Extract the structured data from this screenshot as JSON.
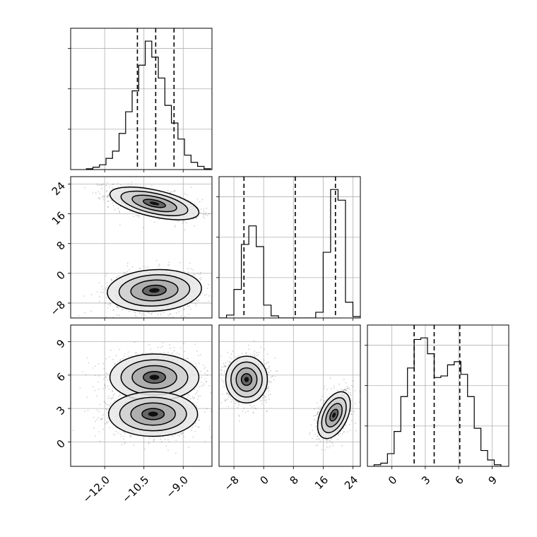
{
  "chart_data": {
    "type": "corner",
    "parameters": [
      {
        "index": 0,
        "range": [
          -13.3,
          -7.9
        ],
        "ticks": [
          -12.0,
          -10.5,
          -9.0
        ],
        "tick_labels": [
          "−12.0",
          "−10.5",
          "−9.0"
        ],
        "quantiles": [
          -10.75,
          -10.05,
          -9.35
        ]
      },
      {
        "index": 1,
        "range": [
          -12,
          26
        ],
        "ticks": [
          -8,
          0,
          8,
          16,
          24
        ],
        "tick_labels": [
          "−8",
          "0",
          "8",
          "16",
          "24"
        ],
        "quantiles": [
          -5.3,
          8.5,
          19.3
        ]
      },
      {
        "index": 2,
        "range": [
          -2.2,
          10.5
        ],
        "ticks": [
          0,
          3,
          6,
          9
        ],
        "tick_labels": [
          "0",
          "3",
          "6",
          "9"
        ],
        "quantiles": [
          2.0,
          3.8,
          6.1
        ]
      }
    ],
    "histograms": [
      {
        "param": 0,
        "edges": [
          -12.7,
          -12.45,
          -12.2,
          -11.95,
          -11.7,
          -11.45,
          -11.2,
          -10.95,
          -10.7,
          -10.45,
          -10.2,
          -9.95,
          -9.7,
          -9.45,
          -9.2,
          -8.95,
          -8.7,
          -8.45,
          -8.2,
          -7.95
        ],
        "counts": [
          1,
          3,
          6,
          14,
          23,
          45,
          72,
          98,
          130,
          160,
          140,
          114,
          80,
          58,
          38,
          18,
          9,
          4,
          1
        ]
      },
      {
        "param": 1,
        "edges": [
          -12,
          -10,
          -8,
          -6,
          -4,
          -2,
          0,
          2,
          4,
          6,
          8,
          10,
          12,
          14,
          16,
          18,
          20,
          22,
          24,
          26
        ],
        "counts": [
          0,
          4,
          40,
          103,
          129,
          100,
          18,
          3,
          0,
          0,
          0,
          0,
          0,
          8,
          92,
          180,
          165,
          22,
          2
        ]
      },
      {
        "param": 2,
        "edges": [
          -1.6,
          -1.0,
          -0.4,
          0.2,
          0.8,
          1.4,
          2.0,
          2.6,
          3.2,
          3.8,
          4.4,
          5.0,
          5.6,
          6.2,
          6.8,
          7.4,
          8.0,
          8.6,
          9.2,
          9.8
        ],
        "counts": [
          1,
          2,
          8,
          22,
          44,
          62,
          80,
          81,
          71,
          56,
          57,
          64,
          66,
          58,
          44,
          24,
          10,
          4,
          1
        ]
      }
    ],
    "joint_modes": [
      {
        "x_param": 0,
        "y_param": 1,
        "modes": [
          {
            "center": [
              -10.1,
              18.8
            ],
            "sx": 0.85,
            "sy": 2.2,
            "corr": -0.55,
            "weight": 0.5
          },
          {
            "center": [
              -10.1,
              -4.6
            ],
            "sx": 0.9,
            "sy": 2.8,
            "corr": 0.1,
            "weight": 0.5
          }
        ]
      },
      {
        "x_param": 0,
        "y_param": 2,
        "modes": [
          {
            "center": [
              -10.1,
              5.8
            ],
            "sx": 0.85,
            "sy": 1.05,
            "corr": 0.0,
            "weight": 0.5
          },
          {
            "center": [
              -10.15,
              2.5
            ],
            "sx": 0.85,
            "sy": 1.0,
            "corr": 0.0,
            "weight": 0.5
          }
        ]
      },
      {
        "x_param": 1,
        "y_param": 2,
        "modes": [
          {
            "center": [
              -4.6,
              5.6
            ],
            "sx": 2.8,
            "sy": 1.05,
            "corr": 0.0,
            "weight": 0.5
          },
          {
            "center": [
              18.9,
              2.4
            ],
            "sx": 2.2,
            "sy": 1.05,
            "corr": 0.45,
            "weight": 0.5
          }
        ]
      }
    ],
    "contour_levels_sigma": [
      0.5,
      1.0,
      1.5,
      2.0
    ],
    "grid": true,
    "quantile_line_style": "dashed",
    "title": "",
    "xlabel": "",
    "ylabel": ""
  }
}
